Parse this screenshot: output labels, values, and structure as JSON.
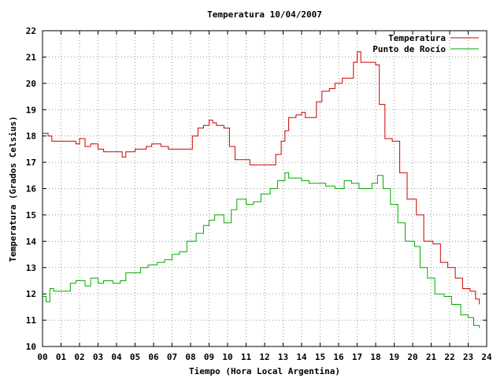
{
  "chart_data": {
    "type": "line",
    "title": "Temperatura 10/04/2007",
    "xlabel": "Tiempo (Hora Local Argentina)",
    "ylabel": "Temperatura (Grados Celsius)",
    "xlim": [
      0,
      24
    ],
    "ylim": [
      10,
      22
    ],
    "x_ticks": [
      "00",
      "01",
      "02",
      "03",
      "04",
      "05",
      "06",
      "07",
      "08",
      "09",
      "10",
      "11",
      "12",
      "13",
      "14",
      "15",
      "16",
      "17",
      "18",
      "19",
      "20",
      "21",
      "22",
      "23",
      "24"
    ],
    "y_ticks": [
      "10",
      "11",
      "12",
      "13",
      "14",
      "15",
      "16",
      "17",
      "18",
      "19",
      "20",
      "21",
      "22"
    ],
    "grid": true,
    "legend_position": "top-right",
    "series": [
      {
        "name": "Temperatura",
        "color": "#cc0000",
        "x": [
          0,
          0.3,
          0.5,
          1.0,
          1.5,
          1.8,
          2.0,
          2.3,
          2.6,
          3.0,
          3.3,
          3.8,
          4.3,
          4.5,
          5.0,
          5.3,
          5.6,
          5.9,
          6.4,
          6.8,
          7.2,
          7.8,
          8.1,
          8.4,
          8.7,
          9.0,
          9.2,
          9.4,
          9.8,
          10.1,
          10.4,
          10.9,
          11.2,
          11.6,
          12.2,
          12.6,
          12.9,
          13.1,
          13.3,
          13.7,
          14.0,
          14.2,
          14.5,
          14.8,
          15.1,
          15.5,
          15.8,
          16.2,
          16.5,
          16.8,
          17.0,
          17.2,
          17.6,
          18.0,
          18.2,
          18.5,
          18.9,
          19.3,
          19.7,
          20.2,
          20.6,
          21.1,
          21.5,
          21.9,
          22.3,
          22.7,
          23.1,
          23.4,
          23.6
        ],
        "values": [
          18.1,
          18.0,
          17.8,
          17.8,
          17.8,
          17.7,
          17.9,
          17.6,
          17.7,
          17.5,
          17.4,
          17.4,
          17.2,
          17.4,
          17.5,
          17.5,
          17.6,
          17.7,
          17.6,
          17.5,
          17.5,
          17.5,
          18.0,
          18.3,
          18.4,
          18.6,
          18.5,
          18.4,
          18.3,
          17.6,
          17.1,
          17.1,
          16.9,
          16.9,
          16.9,
          17.3,
          17.8,
          18.2,
          18.7,
          18.8,
          18.9,
          18.7,
          18.7,
          19.3,
          19.7,
          19.8,
          20.0,
          20.2,
          20.2,
          20.8,
          21.2,
          20.8,
          20.8,
          20.7,
          19.2,
          17.9,
          17.8,
          16.6,
          15.6,
          15.0,
          14.0,
          13.9,
          13.2,
          13.0,
          12.6,
          12.2,
          12.1,
          11.8,
          11.6
        ]
      },
      {
        "name": "Punto de Rocío",
        "color": "#00aa00",
        "x": [
          0,
          0.2,
          0.4,
          0.6,
          1.0,
          1.5,
          1.8,
          2.0,
          2.3,
          2.6,
          3.0,
          3.3,
          3.8,
          4.2,
          4.5,
          5.0,
          5.3,
          5.7,
          6.2,
          6.6,
          7.0,
          7.4,
          7.8,
          8.3,
          8.7,
          9.0,
          9.3,
          9.8,
          10.2,
          10.5,
          11.0,
          11.4,
          11.8,
          12.3,
          12.7,
          13.1,
          13.3,
          13.6,
          14.0,
          14.4,
          14.8,
          15.3,
          15.8,
          16.3,
          16.7,
          17.1,
          17.5,
          17.8,
          18.1,
          18.4,
          18.8,
          19.2,
          19.6,
          20.1,
          20.4,
          20.8,
          21.2,
          21.7,
          22.1,
          22.6,
          23.0,
          23.3,
          23.6
        ],
        "values": [
          11.9,
          11.7,
          12.2,
          12.1,
          12.1,
          12.4,
          12.5,
          12.5,
          12.3,
          12.6,
          12.4,
          12.5,
          12.4,
          12.5,
          12.8,
          12.8,
          13.0,
          13.1,
          13.2,
          13.3,
          13.5,
          13.6,
          14.0,
          14.3,
          14.6,
          14.8,
          15.0,
          14.7,
          15.2,
          15.6,
          15.4,
          15.5,
          15.8,
          16.0,
          16.3,
          16.6,
          16.4,
          16.4,
          16.3,
          16.2,
          16.2,
          16.1,
          16.0,
          16.3,
          16.2,
          16.0,
          16.0,
          16.2,
          16.5,
          16.0,
          15.4,
          14.7,
          14.0,
          13.8,
          13.0,
          12.6,
          12.0,
          11.9,
          11.6,
          11.2,
          11.1,
          10.8,
          10.7
        ]
      }
    ]
  }
}
